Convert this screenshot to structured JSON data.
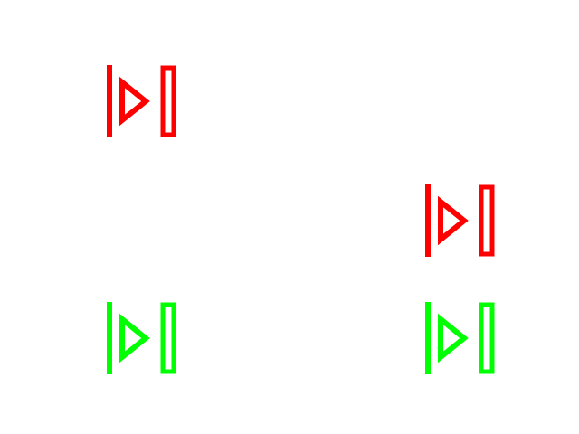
{
  "glyphs": [
    {
      "icon": "step-forward-icon",
      "color": "#ff0000"
    },
    {
      "icon": "step-forward-icon",
      "color": "#ff0000"
    },
    {
      "icon": "step-forward-icon",
      "color": "#00ff00"
    },
    {
      "icon": "step-forward-icon",
      "color": "#00ff00"
    }
  ]
}
